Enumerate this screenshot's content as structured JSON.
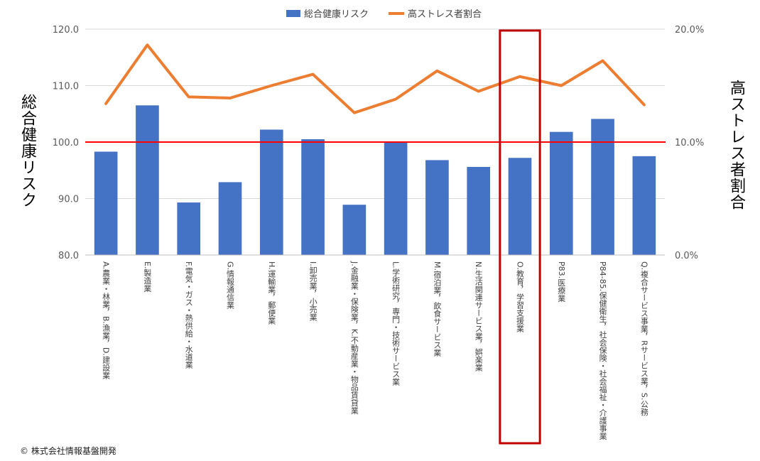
{
  "chart_data": {
    "type": "bar+line",
    "categories": [
      "A.農業・林業，B.漁業，D.建設業",
      "E.製造業",
      "F.電気・ガス・熱供給・水道業",
      "G.情報通信業",
      "H.運輸業，郵便業",
      "I.卸売業，小売業",
      "J.金融業・保険業，K.不動産業・物品賃貸業",
      "L.学術研究，専門・技術サービス業",
      "M.宿泊業，飲食サービス業",
      "N.生活関連サービス業，娯楽業",
      "O.教育，学習支援業",
      "P83.医療業",
      "P84-85.保健衛生，社会保険・社会福祉・介護事業",
      "Q.複合サービス事業，Rサービス業，S.公務"
    ],
    "series": [
      {
        "name": "総合健康リスク",
        "type": "bar",
        "axis": "left",
        "color": "#4472C4",
        "values": [
          98.3,
          106.5,
          89.3,
          92.9,
          102.2,
          100.5,
          88.9,
          100.0,
          96.8,
          95.6,
          97.2,
          101.8,
          104.1,
          97.5
        ]
      },
      {
        "name": "高ストレス者割合",
        "type": "line",
        "axis": "right",
        "color": "#ED7D31",
        "values": [
          13.4,
          18.6,
          14.0,
          13.9,
          15.0,
          16.0,
          12.6,
          13.8,
          16.3,
          14.5,
          15.8,
          15.0,
          17.2,
          13.3
        ]
      }
    ],
    "y_left": {
      "label": "総合健康リスク",
      "min": 80,
      "max": 120,
      "ticks": [
        "80.0",
        "90.0",
        "100.0",
        "110.0",
        "120.0"
      ]
    },
    "y_right": {
      "label": "高ストレス者割合",
      "min": 0,
      "max": 20,
      "ticks": [
        "0.0%",
        "10.0%",
        "20.0%"
      ]
    },
    "reference_line": {
      "axis": "left",
      "value": 100,
      "color": "#FF0000"
    },
    "highlight": {
      "category_index": 10,
      "color": "#C00000"
    },
    "legend_placement": "top-center",
    "grid": true,
    "copyright": "© 株式会社情報基盤開発"
  }
}
